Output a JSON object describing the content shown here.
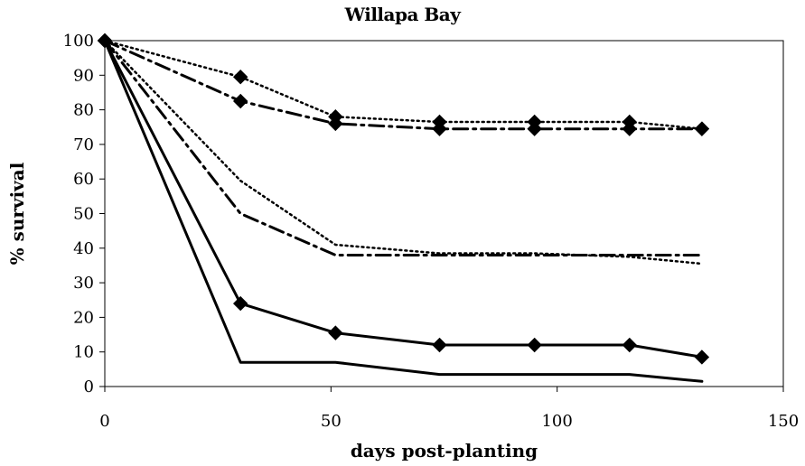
{
  "chart_data": {
    "type": "line",
    "title": "Willapa Bay",
    "xlabel": "days post-planting",
    "ylabel": "% survival",
    "xlim": [
      0,
      150
    ],
    "ylim": [
      0,
      100
    ],
    "x_ticks": [
      0,
      50,
      100,
      150
    ],
    "y_ticks": [
      0,
      10,
      20,
      30,
      40,
      50,
      60,
      70,
      80,
      90,
      100
    ],
    "grid": false,
    "legend": "none",
    "series": [
      {
        "style": "dotted",
        "marker": "diamond",
        "x": [
          0,
          30,
          51,
          74,
          95,
          116,
          132
        ],
        "y": [
          100,
          89.5,
          78,
          76.5,
          76.5,
          76.5,
          74.5
        ]
      },
      {
        "style": "dash-dot",
        "marker": "diamond",
        "x": [
          0,
          30,
          51,
          74,
          95,
          116,
          132
        ],
        "y": [
          100,
          82.5,
          76,
          74.5,
          74.5,
          74.5,
          74.5
        ]
      },
      {
        "style": "dotted",
        "marker": "none",
        "x": [
          0,
          30,
          51,
          74,
          95,
          116,
          132
        ],
        "y": [
          100,
          59.5,
          41,
          38.5,
          38.5,
          37.5,
          35.5
        ]
      },
      {
        "style": "dash-dot",
        "marker": "none",
        "x": [
          0,
          30,
          51,
          74,
          95,
          116,
          132
        ],
        "y": [
          100,
          50,
          38,
          38,
          38,
          38,
          38
        ]
      },
      {
        "style": "solid",
        "marker": "diamond",
        "x": [
          0,
          30,
          51,
          74,
          95,
          116,
          132
        ],
        "y": [
          100,
          24,
          15.5,
          12,
          12,
          12,
          8.5
        ]
      },
      {
        "style": "solid",
        "marker": "none",
        "x": [
          0,
          30,
          51,
          74,
          95,
          116,
          132
        ],
        "y": [
          100,
          7,
          7,
          3.5,
          3.5,
          3.5,
          1.5
        ]
      }
    ]
  }
}
